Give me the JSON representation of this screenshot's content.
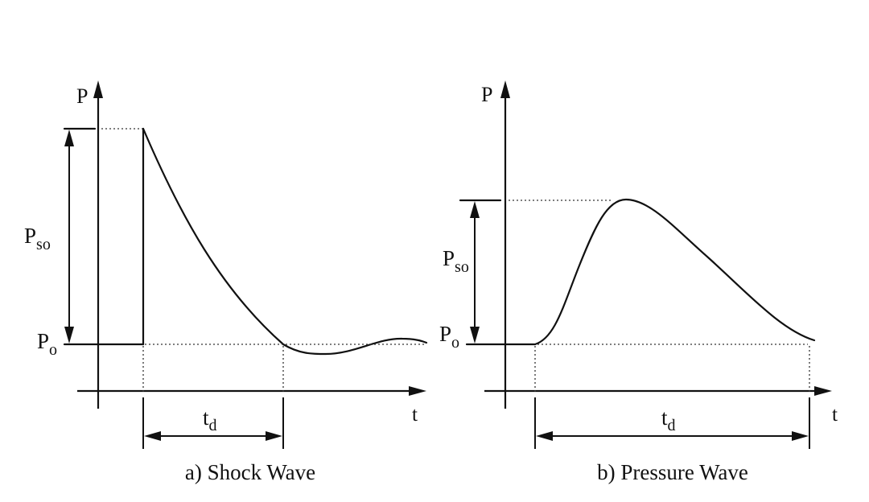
{
  "panel_a": {
    "y_axis_label": "P",
    "x_axis_label": "t",
    "peak_label_main": "P",
    "peak_label_sub": "so",
    "ambient_label_main": "P",
    "ambient_label_sub": "o",
    "duration_label_main": "t",
    "duration_label_sub": "d",
    "caption": "a) Shock Wave"
  },
  "panel_b": {
    "y_axis_label": "P",
    "x_axis_label": "t",
    "peak_label_main": "P",
    "peak_label_sub": "so",
    "ambient_label_main": "P",
    "ambient_label_sub": "o",
    "duration_label_main": "t",
    "duration_label_sub": "d",
    "caption": "b) Pressure Wave"
  }
}
